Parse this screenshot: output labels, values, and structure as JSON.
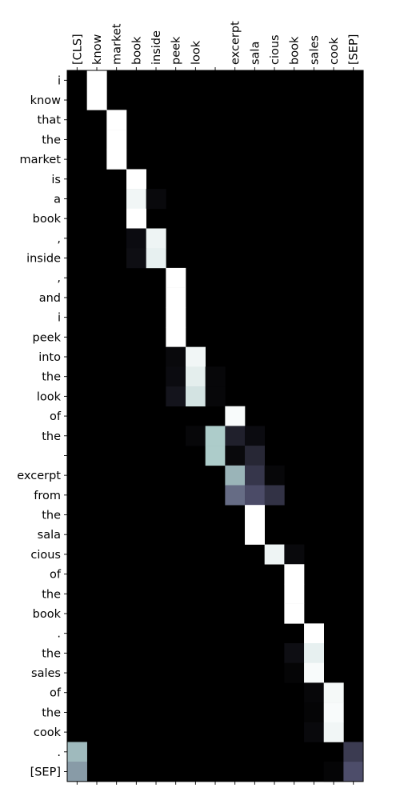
{
  "chart_data": {
    "type": "heatmap",
    "colormap": "bone",
    "x_labels": [
      "[CLS]",
      "know",
      "market",
      "book",
      "inside",
      "peek",
      "look",
      "",
      "excerpt",
      "sala",
      "cious",
      "book",
      "sales",
      "cook",
      "[SEP]"
    ],
    "y_labels": [
      "i",
      "know",
      "that",
      "the",
      "market",
      "is",
      "a",
      "book",
      ",",
      "inside",
      ",",
      "and",
      "i",
      "peek",
      "into",
      "the",
      "look",
      "of",
      "the",
      " ",
      "excerpt",
      "from",
      "the",
      "sala",
      "cious",
      "of",
      "the",
      "book",
      ".",
      "the",
      "sales",
      "of",
      "the",
      "cook",
      ".",
      "[SEP]"
    ],
    "cells": [
      [
        0,
        1,
        1.0
      ],
      [
        1,
        1,
        1.0
      ],
      [
        2,
        2,
        1.0
      ],
      [
        3,
        2,
        1.0
      ],
      [
        4,
        2,
        1.0
      ],
      [
        5,
        3,
        1.0
      ],
      [
        6,
        3,
        0.96
      ],
      [
        6,
        4,
        0.04
      ],
      [
        7,
        3,
        1.0
      ],
      [
        8,
        3,
        0.05
      ],
      [
        8,
        4,
        0.95
      ],
      [
        9,
        3,
        0.06
      ],
      [
        9,
        4,
        0.93
      ],
      [
        10,
        5,
        1.0
      ],
      [
        11,
        5,
        1.0
      ],
      [
        12,
        5,
        1.0
      ],
      [
        13,
        5,
        1.0
      ],
      [
        14,
        5,
        0.04
      ],
      [
        14,
        6,
        0.96
      ],
      [
        15,
        5,
        0.05
      ],
      [
        15,
        6,
        0.92
      ],
      [
        15,
        7,
        0.03
      ],
      [
        16,
        5,
        0.09
      ],
      [
        16,
        6,
        0.87
      ],
      [
        16,
        7,
        0.03
      ],
      [
        17,
        8,
        0.98
      ],
      [
        18,
        6,
        0.03
      ],
      [
        18,
        7,
        0.76
      ],
      [
        18,
        8,
        0.14
      ],
      [
        18,
        9,
        0.05
      ],
      [
        19,
        7,
        0.76
      ],
      [
        19,
        8,
        0.04
      ],
      [
        19,
        9,
        0.17
      ],
      [
        20,
        8,
        0.68
      ],
      [
        20,
        9,
        0.24
      ],
      [
        20,
        10,
        0.03
      ],
      [
        21,
        8,
        0.45
      ],
      [
        21,
        9,
        0.33
      ],
      [
        21,
        10,
        0.22
      ],
      [
        22,
        9,
        1.0
      ],
      [
        23,
        9,
        1.0
      ],
      [
        24,
        10,
        0.95
      ],
      [
        24,
        11,
        0.04
      ],
      [
        25,
        11,
        1.0
      ],
      [
        26,
        11,
        1.0
      ],
      [
        27,
        11,
        1.0
      ],
      [
        28,
        12,
        1.0
      ],
      [
        29,
        11,
        0.06
      ],
      [
        29,
        12,
        0.93
      ],
      [
        30,
        11,
        0.02
      ],
      [
        30,
        12,
        0.98
      ],
      [
        31,
        12,
        0.03
      ],
      [
        31,
        13,
        0.97
      ],
      [
        32,
        12,
        0.02
      ],
      [
        32,
        13,
        0.98
      ],
      [
        33,
        12,
        0.04
      ],
      [
        33,
        13,
        0.96
      ],
      [
        34,
        0,
        0.7
      ],
      [
        34,
        14,
        0.26
      ],
      [
        35,
        0,
        0.6
      ],
      [
        35,
        13,
        0.02
      ],
      [
        35,
        14,
        0.34
      ]
    ]
  }
}
